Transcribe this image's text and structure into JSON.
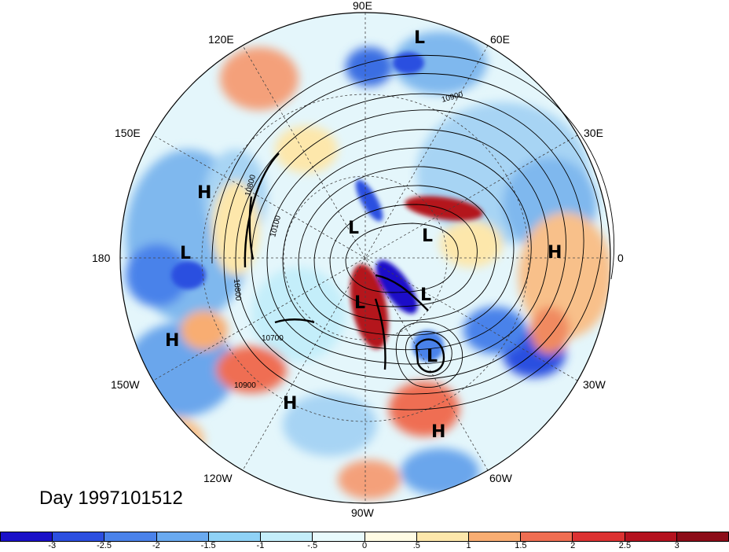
{
  "day_label": "Day 1997101512",
  "longitude_labels": {
    "lon_90e": "90E",
    "lon_60e": "60E",
    "lon_30e": "30E",
    "lon_0": "0",
    "lon_30w": "30W",
    "lon_60w": "60W",
    "lon_90w": "90W",
    "lon_120w": "120W",
    "lon_150w": "150W",
    "lon_180": "180",
    "lon_150e": "150E",
    "lon_120e": "120E"
  },
  "pressure_centers": {
    "high": "H",
    "low": "L"
  },
  "contour_labels": [
    "10900",
    "10800",
    "10100",
    "10800",
    "10700",
    "10900"
  ],
  "colorbar": {
    "ticks": [
      "-3",
      "-2.5",
      "-2",
      "-1.5",
      "-1",
      "-.5",
      "0",
      ".5",
      "1",
      "1.5",
      "2",
      "2.5",
      "3"
    ],
    "colors": [
      "#1a10c8",
      "#2c4fe0",
      "#4a82ea",
      "#6aaaf0",
      "#8fd2f6",
      "#c4eefa",
      "#e8fafc",
      "#fffbe4",
      "#fde7ab",
      "#f8ad72",
      "#ef6e52",
      "#dc3232",
      "#b4121f",
      "#8c0c18"
    ]
  }
}
